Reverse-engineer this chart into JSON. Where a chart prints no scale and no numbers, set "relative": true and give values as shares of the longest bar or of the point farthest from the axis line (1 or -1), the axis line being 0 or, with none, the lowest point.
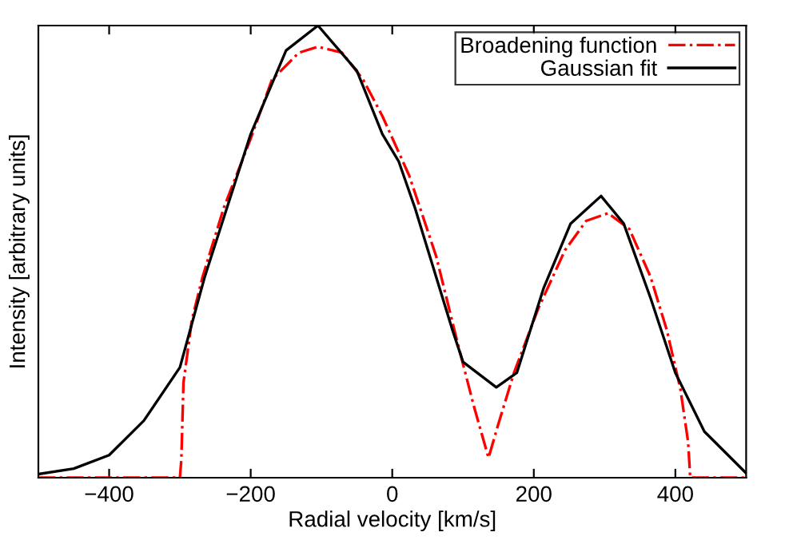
{
  "chart_data": {
    "type": "line",
    "relative": true,
    "xlabel": "Radial velocity [km/s]",
    "ylabel": "Intensity [arbitrary units]",
    "xlim": [
      -500,
      500
    ],
    "xticks": [
      {
        "value": -400,
        "label": "−400"
      },
      {
        "value": -200,
        "label": "−200"
      },
      0,
      200,
      400
    ],
    "tick_labels": "x",
    "grid": false,
    "legend": "top right",
    "series": [
      {
        "name": "Broadening function",
        "color": "#ff0000",
        "line_style": "dashdot",
        "x": [
          -500,
          -400,
          -300,
          -298,
          -295,
          -283,
          -268,
          -238,
          -200,
          -170,
          -132,
          -105,
          -71,
          -41,
          -14,
          24,
          62,
          92,
          115,
          136,
          149,
          172,
          206,
          244,
          274,
          305,
          335,
          365,
          388,
          407,
          418,
          421,
          450,
          500
        ],
        "values": [
          0,
          0,
          0,
          0.04,
          0.21,
          0.35,
          0.444,
          0.597,
          0.75,
          0.88,
          0.94,
          0.953,
          0.94,
          0.88,
          0.8,
          0.668,
          0.49,
          0.3,
          0.16,
          0.044,
          0.114,
          0.232,
          0.373,
          0.503,
          0.568,
          0.585,
          0.55,
          0.444,
          0.326,
          0.197,
          0.079,
          0,
          0,
          0
        ]
      },
      {
        "name": "Gaussian fit",
        "color": "#000000",
        "line_style": "solid",
        "x": [
          -500,
          -450,
          -400,
          -351,
          -300,
          -265,
          -200,
          -150,
          -105,
          -50,
          -14,
          9,
          32,
          85,
          100,
          147,
          176,
          214,
          252,
          295,
          327,
          365,
          400,
          441,
          500
        ],
        "values": [
          0.008,
          0.02,
          0.05,
          0.126,
          0.244,
          0.444,
          0.76,
          0.945,
          1.0,
          0.9,
          0.76,
          0.7,
          0.597,
          0.327,
          0.256,
          0.2,
          0.232,
          0.42,
          0.562,
          0.623,
          0.562,
          0.397,
          0.232,
          0.102,
          0.01
        ]
      }
    ]
  }
}
